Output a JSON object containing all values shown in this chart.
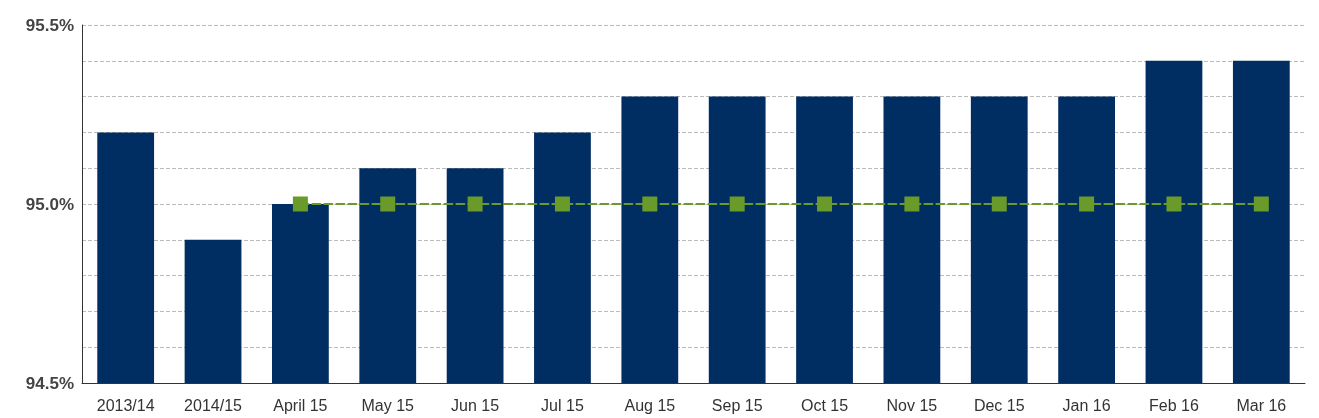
{
  "chart_data": {
    "type": "bar",
    "categories": [
      "2013/14",
      "2014/15",
      "April 15",
      "May 15",
      "Jun 15",
      "Jul 15",
      "Aug 15",
      "Sep 15",
      "Oct 15",
      "Nov 15",
      "Dec 15",
      "Jan 16",
      "Feb 16",
      "Mar 16"
    ],
    "series": [
      {
        "color": "#002d62",
        "values": [
          95.2,
          94.9,
          95.0,
          95.1,
          95.1,
          95.2,
          95.3,
          95.3,
          95.3,
          95.3,
          95.3,
          95.3,
          95.4,
          95.4
        ]
      },
      {
        "type": "line",
        "color": "#6a9a2a",
        "marker": "square",
        "line_style": "dashed",
        "values": [
          null,
          null,
          95.0,
          95.0,
          95.0,
          95.0,
          95.0,
          95.0,
          95.0,
          95.0,
          95.0,
          95.0,
          95.0,
          95.0
        ]
      }
    ],
    "ylim": [
      94.5,
      95.5
    ],
    "yticks": [
      {
        "value": 94.5,
        "label": "94.5%"
      },
      {
        "value": 94.6,
        "label": null
      },
      {
        "value": 94.7,
        "label": null
      },
      {
        "value": 94.8,
        "label": null
      },
      {
        "value": 94.9,
        "label": null
      },
      {
        "value": 95.0,
        "label": "95.0%"
      },
      {
        "value": 95.1,
        "label": null
      },
      {
        "value": 95.2,
        "label": null
      },
      {
        "value": 95.3,
        "label": null
      },
      {
        "value": 95.4,
        "label": null
      },
      {
        "value": 95.5,
        "label": "95.5%"
      }
    ],
    "grid": "y"
  }
}
